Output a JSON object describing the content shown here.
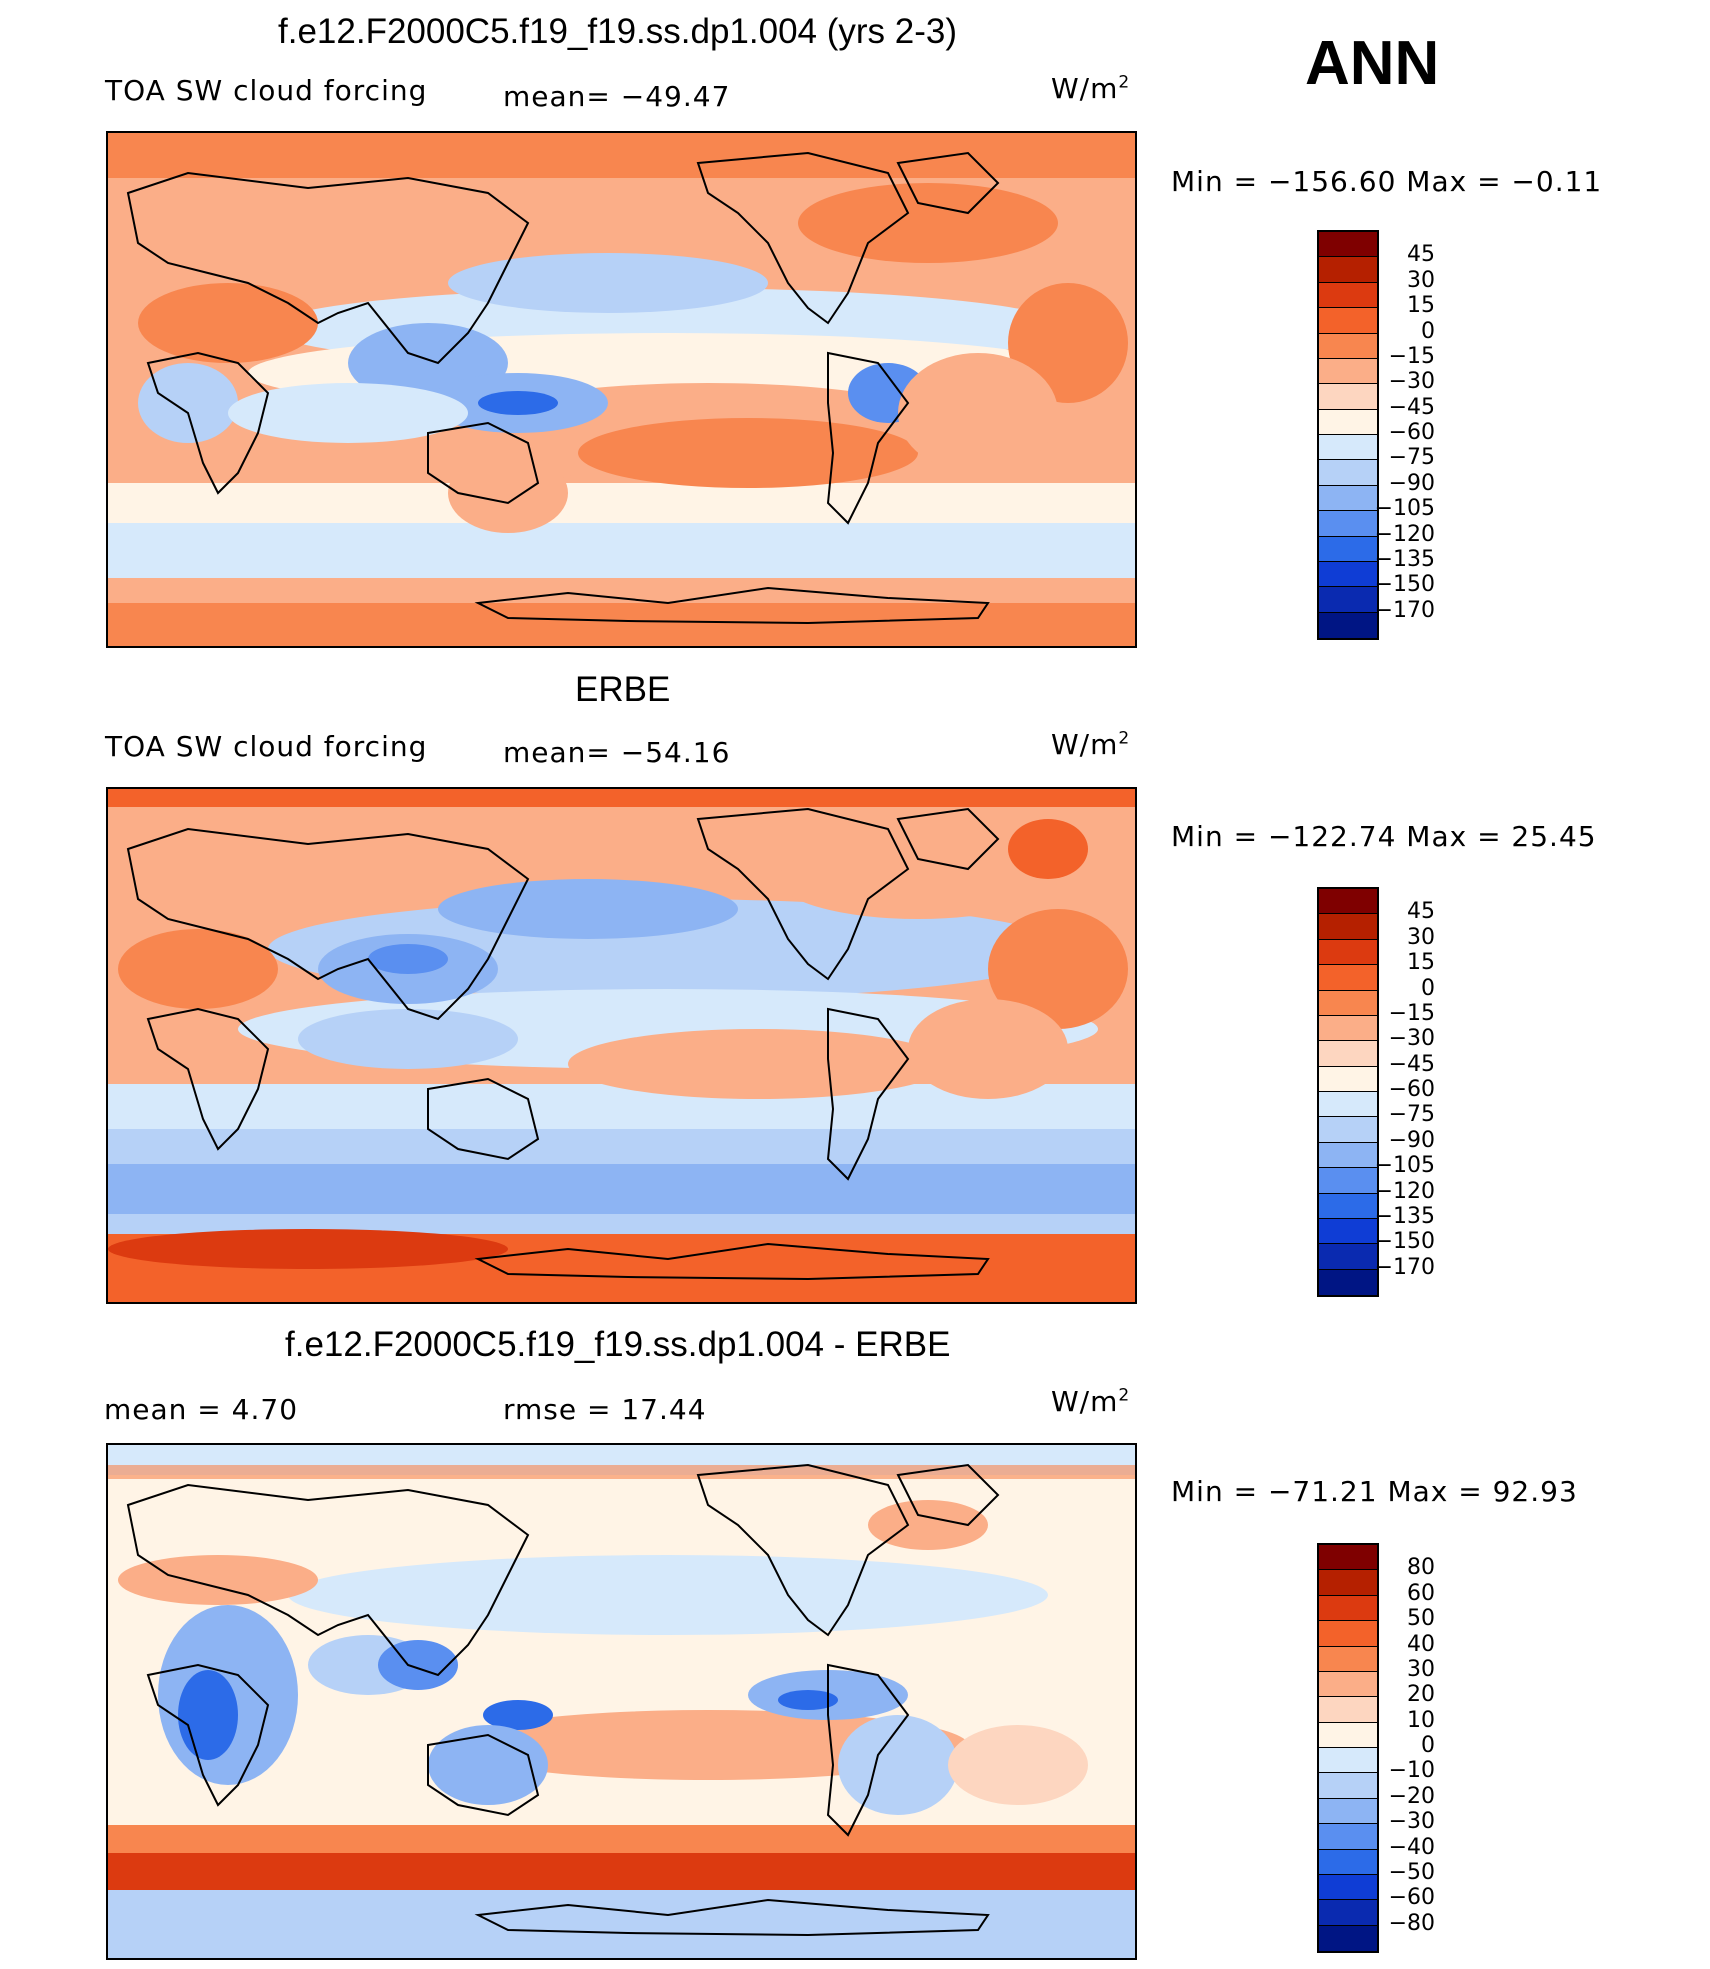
{
  "season": "ANN",
  "panels": [
    {
      "title": "f.e12.F2000C5.f19_f19.ss.dp1.004 (yrs 2-3)",
      "left_label": "TOA SW cloud forcing",
      "mid_label": "mean= −49.47",
      "units": "W/m",
      "units_sup": "2",
      "minmax": "Min = −156.60 Max =  −0.11",
      "colorbar": {
        "labels": [
          "45",
          "30",
          "15",
          "0",
          "−15",
          "−30",
          "−45",
          "−60",
          "−75",
          "−90",
          "−105",
          "−120",
          "−135",
          "−150",
          "−170"
        ],
        "colors": [
          "#7f0000",
          "#b52000",
          "#dc3a10",
          "#f3622a",
          "#f8864f",
          "#fbae88",
          "#fdd6c0",
          "#fff4e6",
          "#d6e9fb",
          "#b6d1f7",
          "#8db4f3",
          "#5a8ff0",
          "#2c6be8",
          "#0f3dd5",
          "#0a2ab0",
          "#001584"
        ]
      },
      "map_regions": {
        "polar": "orange",
        "equatorial_pacific": "light-blue",
        "subtropics": "peach"
      }
    },
    {
      "title": "ERBE",
      "left_label": "TOA SW cloud forcing",
      "mid_label": "mean= −54.16",
      "units": "W/m",
      "units_sup": "2",
      "minmax": "Min = −122.74 Max =   25.45",
      "colorbar": {
        "labels": [
          "45",
          "30",
          "15",
          "0",
          "−15",
          "−30",
          "−45",
          "−60",
          "−75",
          "−90",
          "−105",
          "−120",
          "−135",
          "−150",
          "−170"
        ],
        "colors": [
          "#7f0000",
          "#b52000",
          "#dc3a10",
          "#f3622a",
          "#f8864f",
          "#fbae88",
          "#fdd6c0",
          "#fff4e6",
          "#d6e9fb",
          "#b6d1f7",
          "#8db4f3",
          "#5a8ff0",
          "#2c6be8",
          "#0f3dd5",
          "#0a2ab0",
          "#001584"
        ]
      }
    },
    {
      "title": "f.e12.F2000C5.f19_f19.ss.dp1.004 - ERBE",
      "left_label": "mean =    4.70",
      "mid_label": "rmse =   17.44",
      "units": "W/m",
      "units_sup": "2",
      "minmax": "Min = −71.21 Max =   92.93",
      "colorbar": {
        "labels": [
          "80",
          "60",
          "50",
          "40",
          "30",
          "20",
          "10",
          "0",
          "−10",
          "−20",
          "−30",
          "−40",
          "−50",
          "−60",
          "−80"
        ],
        "colors": [
          "#7f0000",
          "#b52000",
          "#dc3a10",
          "#f3622a",
          "#f8864f",
          "#fbae88",
          "#fdd6c0",
          "#fff4e6",
          "#d6e9fb",
          "#b6d1f7",
          "#8db4f3",
          "#5a8ff0",
          "#2c6be8",
          "#0f3dd5",
          "#0a2ab0",
          "#001584"
        ]
      }
    }
  ]
}
